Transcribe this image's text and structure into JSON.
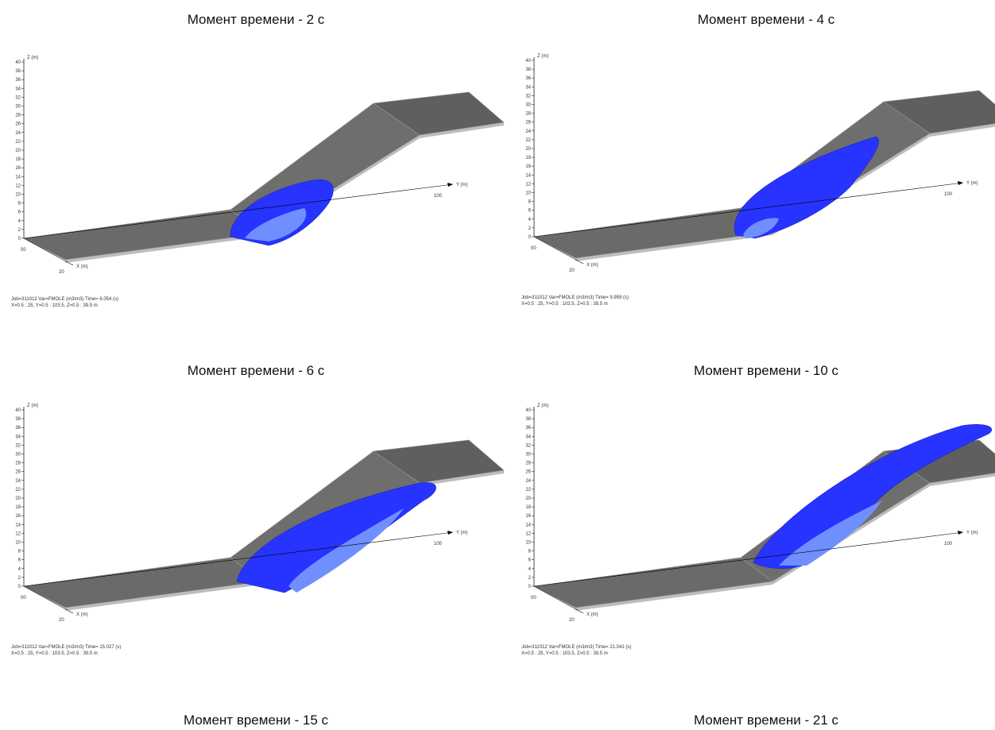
{
  "captions": [
    "Момент времени - 2 с",
    "Момент времени - 4 с",
    "Момент времени - 6 с",
    "Момент времени - 10 с",
    "Момент времени - 15 с",
    "Момент времени - 21 с"
  ],
  "axes": {
    "z_label": "Z (m)",
    "y_label": "Y (m)",
    "x_label": "X (m)",
    "z_ticks": [
      0,
      2,
      4,
      6,
      8,
      10,
      12,
      14,
      16,
      18,
      20,
      22,
      24,
      26,
      28,
      30,
      32,
      34,
      36,
      38,
      40
    ],
    "y_tick": "100",
    "x_ticks": [
      "00",
      "20"
    ]
  },
  "panels": [
    {
      "job_line": "Job=311012  Var=FMOLE (m3/m3)  Time=  6.054 (s)",
      "range_line": "X=0.5 : 25, Y=0.5 : 103.5, Z=0.5 : 39.5 m"
    },
    {
      "job_line": "Job=311012  Var=FMOLE (m3/m3)  Time=  9.959 (s)",
      "range_line": "X=0.5 : 25, Y=0.5 : 103.5, Z=0.5 : 39.5 m"
    },
    {
      "job_line": "Job=311012  Var=FMOLE (m3/m3)  Time=  15.027 (s)",
      "range_line": "X=0.5 : 25, Y=0.5 : 103.5, Z=0.5 : 39.5 m"
    },
    {
      "job_line": "Job=311012  Var=FMOLE (m3/m3)  Time=  21.041 (s)",
      "range_line": "X=0.5 : 25, Y=0.5 : 103.5, Z=0.5 : 39.5 m"
    }
  ]
}
